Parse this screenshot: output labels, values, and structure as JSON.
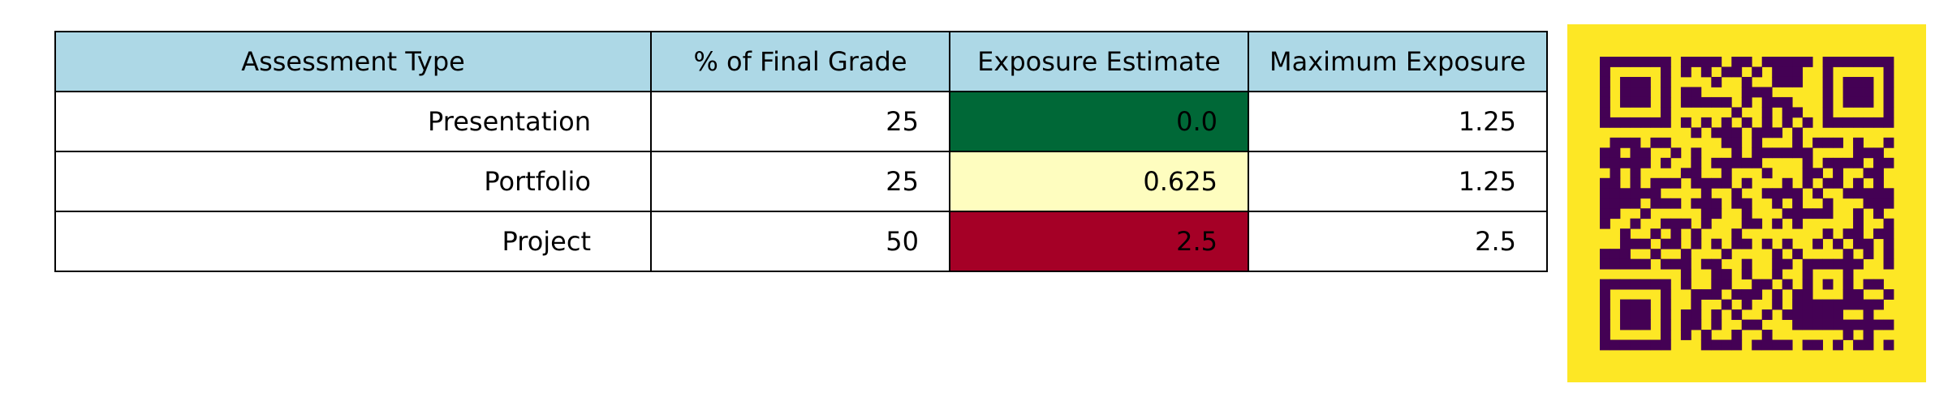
{
  "chart_data": {
    "type": "table",
    "columns": [
      "Assessment Type",
      "% of Final Grade",
      "Exposure Estimate",
      "Maximum Exposure"
    ],
    "rows": [
      [
        "Presentation",
        "25",
        "0.0",
        "1.25"
      ],
      [
        "Portfolio",
        "25",
        "0.625",
        "1.25"
      ],
      [
        "Project",
        "50",
        "2.5",
        "2.5"
      ]
    ],
    "exposure_colors": [
      "#006837",
      "#FEFDBF",
      "#A50026"
    ],
    "header_color": "#ADD8E6"
  },
  "qr_code": {
    "foreground": "#440154",
    "background": "#FDE725"
  }
}
